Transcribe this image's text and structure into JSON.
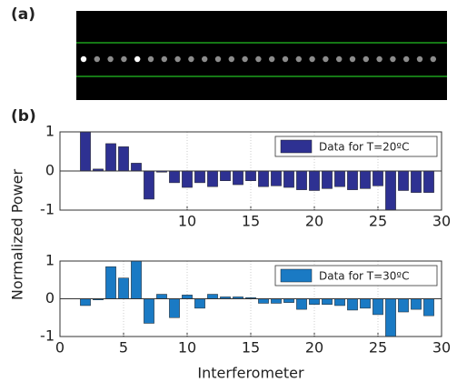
{
  "figure": {
    "panel_a": "(a)",
    "panel_b": "(b)",
    "ylabel": "Normalized Power",
    "xlabel": "Interferometer"
  },
  "chart_data": [
    {
      "type": "bar",
      "legend": "top-right",
      "grid": true,
      "series": [
        {
          "name": "Data for T=20ºC",
          "color": "#2e3192",
          "values": [
            1.0,
            0.05,
            0.7,
            0.62,
            0.2,
            -0.72,
            -0.03,
            -0.3,
            -0.42,
            -0.3,
            -0.4,
            -0.25,
            -0.35,
            -0.25,
            -0.4,
            -0.38,
            -0.42,
            -0.48,
            -0.5,
            -0.45,
            -0.4,
            -0.48,
            -0.45,
            -0.38,
            -1.0,
            -0.5,
            -0.55,
            -0.55
          ]
        }
      ],
      "x": [
        2,
        3,
        4,
        5,
        6,
        7,
        8,
        9,
        10,
        11,
        12,
        13,
        14,
        15,
        16,
        17,
        18,
        19,
        20,
        21,
        22,
        23,
        24,
        25,
        26,
        27,
        28,
        29
      ],
      "xlim": [
        0,
        30
      ],
      "xticks": [
        10,
        15,
        20,
        25,
        30
      ],
      "ylim": [
        -1,
        1
      ],
      "yticks": [
        -1,
        0,
        1
      ]
    },
    {
      "type": "bar",
      "legend": "top-right",
      "grid": true,
      "series": [
        {
          "name": "Data for T=30ºC",
          "color": "#1a7ac4",
          "values": [
            -0.18,
            -0.03,
            0.85,
            0.55,
            1.0,
            -0.65,
            0.12,
            -0.5,
            0.1,
            -0.25,
            0.12,
            0.05,
            0.05,
            0.03,
            -0.12,
            -0.12,
            -0.1,
            -0.28,
            -0.15,
            -0.15,
            -0.18,
            -0.3,
            -0.25,
            -0.42,
            -1.0,
            -0.35,
            -0.28,
            -0.45
          ]
        }
      ],
      "x": [
        2,
        3,
        4,
        5,
        6,
        7,
        8,
        9,
        10,
        11,
        12,
        13,
        14,
        15,
        16,
        17,
        18,
        19,
        20,
        21,
        22,
        23,
        24,
        25,
        26,
        27,
        28,
        29
      ],
      "xlim": [
        0,
        30
      ],
      "xticks": [
        0,
        5,
        10,
        15,
        20,
        25,
        30
      ],
      "ylim": [
        -1,
        1
      ],
      "yticks": [
        -1,
        0,
        1
      ]
    }
  ]
}
